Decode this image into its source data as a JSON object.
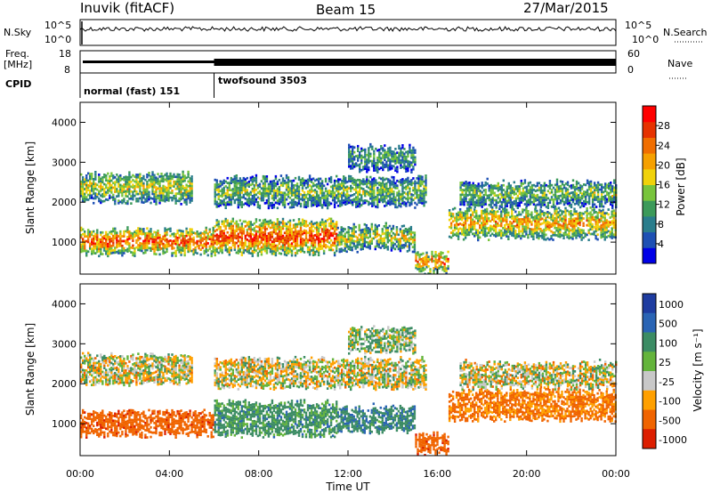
{
  "header": {
    "station": "Inuvik (fitACF)",
    "beam": "Beam 15",
    "date": "27/Mar/2015"
  },
  "top_panels": {
    "nsky_label": "N.Sky",
    "nsky_ticks": [
      "10^5",
      "10^0"
    ],
    "nsearch_label": "N.Search",
    "nsearch_ticks": [
      "10^5",
      "10^0"
    ],
    "freq_label_1": "Freq.",
    "freq_label_2": "[MHz]",
    "freq_ticks": [
      "18",
      "8"
    ],
    "nave_label": "Nave",
    "nave_ticks": [
      "60",
      "0"
    ],
    "cpid_label": "CPID",
    "modes": [
      {
        "name": "normal (fast) 151",
        "start_hour": 0,
        "end_hour": 6
      },
      {
        "name": "twofsound 3503",
        "start_hour": 6,
        "end_hour": 24
      }
    ]
  },
  "chart_data": [
    {
      "type": "heatmap",
      "name": "power",
      "title": "",
      "xlabel": "",
      "ylabel": "Slant Range [km]",
      "x_range_hours": [
        0,
        24
      ],
      "ylim": [
        200,
        4500
      ],
      "y_ticks": [
        "1000",
        "2000",
        "3000",
        "4000"
      ],
      "colorbar": {
        "label": "Power [dB]",
        "ticks": [
          "4",
          "8",
          "12",
          "16",
          "20",
          "24",
          "28"
        ],
        "range": [
          0,
          32
        ],
        "colors": [
          "#0000e6",
          "#1e50b4",
          "#2a7d8c",
          "#3c9a5a",
          "#78c43c",
          "#f0d20a",
          "#f5a000",
          "#f06e00",
          "#e63200",
          "#ff0000"
        ]
      },
      "bands": [
        {
          "h0": 0.0,
          "h1": 6.0,
          "r_lo": 700,
          "r_hi": 1300,
          "level": 0.85
        },
        {
          "h0": 6.0,
          "h1": 11.5,
          "r_lo": 700,
          "r_hi": 1500,
          "level": 0.9
        },
        {
          "h0": 11.5,
          "h1": 15.0,
          "r_lo": 800,
          "r_hi": 1400,
          "level": 0.55
        },
        {
          "h0": 16.5,
          "h1": 24.0,
          "r_lo": 1100,
          "r_hi": 1800,
          "level": 0.7
        },
        {
          "h0": 0.0,
          "h1": 5.0,
          "r_lo": 2000,
          "r_hi": 2700,
          "level": 0.55
        },
        {
          "h0": 6.0,
          "h1": 15.5,
          "r_lo": 1900,
          "r_hi": 2600,
          "level": 0.45
        },
        {
          "h0": 17.0,
          "h1": 24.0,
          "r_lo": 1900,
          "r_hi": 2500,
          "level": 0.45
        },
        {
          "h0": 12.0,
          "h1": 15.0,
          "r_lo": 2800,
          "r_hi": 3400,
          "level": 0.35
        },
        {
          "h0": 15.0,
          "h1": 16.5,
          "r_lo": 250,
          "r_hi": 700,
          "level": 0.8
        }
      ]
    },
    {
      "type": "heatmap",
      "name": "velocity",
      "title": "",
      "xlabel": "Time UT",
      "ylabel": "Slant Range [km]",
      "x_range_hours": [
        0,
        24
      ],
      "x_ticks": [
        "00:00",
        "04:00",
        "08:00",
        "12:00",
        "16:00",
        "20:00",
        "00:00"
      ],
      "ylim": [
        200,
        4500
      ],
      "y_ticks": [
        "1000",
        "2000",
        "3000",
        "4000"
      ],
      "colorbar": {
        "label": "Velocity [m s⁻¹]",
        "ticks": [
          "1000",
          "500",
          "100",
          "25",
          "-25",
          "-100",
          "-500",
          "-1000"
        ],
        "colors": [
          "#1e3ca0",
          "#2a64b4",
          "#3c8c64",
          "#64b43c",
          "#c8c8c8",
          "#ffa000",
          "#f06400",
          "#dc1e00"
        ]
      },
      "bands": [
        {
          "h0": 0.0,
          "h1": 6.0,
          "r_lo": 700,
          "r_hi": 1300,
          "vel": -300
        },
        {
          "h0": 6.0,
          "h1": 11.5,
          "r_lo": 700,
          "r_hi": 1500,
          "vel": 150
        },
        {
          "h0": 11.5,
          "h1": 15.0,
          "r_lo": 800,
          "r_hi": 1400,
          "vel": 200
        },
        {
          "h0": 16.5,
          "h1": 24.0,
          "r_lo": 1100,
          "r_hi": 1800,
          "vel": -150
        },
        {
          "h0": 0.0,
          "h1": 5.0,
          "r_lo": 2000,
          "r_hi": 2700,
          "vel": 0
        },
        {
          "h0": 6.0,
          "h1": 15.5,
          "r_lo": 1900,
          "r_hi": 2600,
          "vel": 0
        },
        {
          "h0": 17.0,
          "h1": 24.0,
          "r_lo": 1900,
          "r_hi": 2500,
          "vel": 0
        },
        {
          "h0": 12.0,
          "h1": 15.0,
          "r_lo": 2800,
          "r_hi": 3400,
          "vel": 60
        },
        {
          "h0": 15.0,
          "h1": 16.5,
          "r_lo": 250,
          "r_hi": 700,
          "vel": -300
        }
      ]
    }
  ]
}
